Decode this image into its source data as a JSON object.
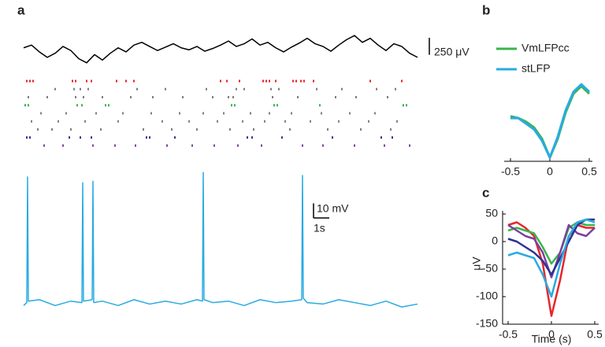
{
  "chart_data": [
    {
      "type": "line",
      "label": "a",
      "x": [
        0,
        0.5,
        1,
        1.5,
        2,
        2.5,
        3,
        3.5,
        4,
        4.5,
        5,
        5.5,
        6,
        6.5,
        7,
        7.5,
        8,
        8.5,
        9,
        9.5,
        10,
        10.5,
        11,
        11.5,
        12,
        12.5,
        13,
        13.5,
        14,
        14.5,
        15,
        15.5,
        16,
        16.5,
        17,
        17.5,
        18,
        18.5,
        19,
        19.5,
        20,
        20.5,
        21,
        21.5,
        22,
        22.5,
        23,
        23.5,
        24,
        24.5,
        25
      ],
      "series": [
        {
          "color": "#000000",
          "values": [
            20,
            60,
            -40,
            -120,
            -60,
            40,
            -20,
            -140,
            -200,
            -80,
            -160,
            -60,
            20,
            -40,
            60,
            100,
            40,
            -20,
            30,
            80,
            20,
            -10,
            40,
            -30,
            10,
            60,
            120,
            40,
            80,
            150,
            60,
            100,
            20,
            -40,
            30,
            90,
            160,
            80,
            40,
            -30,
            60,
            140,
            200,
            100,
            160,
            60,
            -20,
            80,
            40,
            -60,
            -120
          ]
        }
      ],
      "xlim": [
        0,
        25
      ],
      "ylim": [
        -260,
        260
      ],
      "scale_bar": {
        "value": 250,
        "label": "250 μV"
      }
    },
    {
      "type": "raster",
      "xlim": [
        0,
        25
      ],
      "series": [
        {
          "color": "#e8262a",
          "x": [
            0.2,
            0.4,
            0.6,
            3.1,
            3.3,
            4.0,
            4.3,
            5.9,
            6.5,
            7.0,
            12.5,
            12.9,
            13.7,
            15.2,
            15.4,
            15.6,
            16.0,
            17.1,
            17.3,
            17.6,
            17.8,
            18.4,
            22.0,
            24.0
          ]
        },
        {
          "color": "#808080",
          "x": [
            2.0,
            3.2,
            3.6,
            4.1,
            7.2,
            9.0,
            11.6,
            13.5,
            14.0,
            15.7,
            16.2,
            18.6,
            20.2,
            22.4,
            23.6
          ]
        },
        {
          "color": "#808080",
          "x": [
            0.3,
            1.5,
            3.3,
            3.8,
            5.0,
            6.8,
            8.2,
            10.1,
            12.0,
            13.0,
            13.3,
            15.8,
            17.4,
            19.8,
            21.1,
            23.1
          ]
        },
        {
          "color": "#39b54a",
          "x": [
            0.1,
            0.3,
            3.4,
            3.7,
            5.2,
            5.4,
            13.2,
            13.4,
            15.9,
            16.1,
            18.8,
            24.1,
            24.3
          ]
        },
        {
          "color": "#808080",
          "x": [
            1.1,
            2.7,
            4.6,
            6.3,
            8.1,
            9.9,
            11.4,
            12.7,
            14.4,
            15.6,
            17.0,
            18.9,
            20.7,
            22.3
          ]
        },
        {
          "color": "#808080",
          "x": [
            0.5,
            2.2,
            3.9,
            6.0,
            8.8,
            10.5,
            12.3,
            13.9,
            15.3,
            16.6,
            18.2,
            20.0,
            21.9,
            23.7
          ]
        },
        {
          "color": "#808080",
          "x": [
            0.9,
            1.8,
            3.0,
            4.9,
            7.6,
            9.4,
            11.0,
            13.1,
            14.6,
            16.9,
            19.3,
            21.4,
            23.3
          ]
        },
        {
          "color": "#2e3192",
          "x": [
            0.2,
            0.4,
            2.9,
            3.6,
            4.3,
            7.8,
            8.0,
            9.6,
            14.2,
            14.5,
            16.4,
            19.6,
            22.7,
            23.4
          ]
        },
        {
          "color": "#7b3f9e",
          "x": [
            1.3,
            2.5,
            4.4,
            5.8,
            7.1,
            9.1,
            10.7,
            12.1,
            13.6,
            15.1,
            17.7,
            19.0,
            21.0,
            22.9,
            24.5
          ]
        }
      ]
    },
    {
      "type": "line",
      "x": [
        0,
        0.2,
        0.25,
        0.3,
        1,
        2,
        3,
        3.7,
        3.75,
        3.8,
        4.35,
        4.4,
        4.45,
        5,
        6,
        7,
        8,
        9,
        10,
        11,
        11.35,
        11.4,
        11.45,
        12,
        13,
        14,
        15,
        16,
        17,
        17.65,
        17.7,
        17.75,
        18,
        19,
        20,
        21,
        22,
        23,
        24,
        25
      ],
      "series": [
        {
          "color": "#29abe2",
          "values": [
            -66,
            -64,
            22,
            -63,
            -62,
            -66,
            -63,
            -64,
            18,
            -63,
            -62,
            19,
            -64,
            -63,
            -66,
            -62,
            -65,
            -63,
            -65,
            -62,
            -63,
            25,
            -62,
            -64,
            -63,
            -66,
            -62,
            -64,
            -63,
            -62,
            23,
            -61,
            -64,
            -65,
            -62,
            -64,
            -66,
            -63,
            -67,
            -65
          ]
        }
      ],
      "xlim": [
        0,
        25
      ],
      "ylim": [
        -75,
        30
      ],
      "scale_bar_y": {
        "value": 10,
        "label": "10 mV"
      },
      "scale_bar_x": {
        "value": 1,
        "label": "1s"
      }
    },
    {
      "type": "line",
      "label": "b",
      "x": [
        -0.5,
        -0.4,
        -0.3,
        -0.2,
        -0.1,
        0,
        0.1,
        0.2,
        0.3,
        0.4,
        0.5
      ],
      "series": [
        {
          "name": "VmLFPcc",
          "color": "#39b54a",
          "values": [
            0.1,
            0.05,
            -0.05,
            -0.2,
            -0.5,
            -1,
            -0.5,
            0.2,
            0.7,
            0.9,
            0.7
          ]
        },
        {
          "name": "stLFP",
          "color": "#29abe2",
          "values": [
            0.05,
            0.05,
            -0.1,
            -0.25,
            -0.55,
            -1.0,
            -0.45,
            0.25,
            0.75,
            0.95,
            0.75
          ]
        }
      ],
      "xlim": [
        -0.5,
        0.5
      ],
      "ylim": [
        -1.1,
        1.1
      ],
      "xticks": [
        -0.5,
        0,
        0.5
      ]
    },
    {
      "type": "line",
      "label": "c",
      "x": [
        -0.5,
        -0.4,
        -0.3,
        -0.2,
        -0.1,
        0,
        0.1,
        0.2,
        0.3,
        0.4,
        0.5
      ],
      "series": [
        {
          "color": "#e8262a",
          "values": [
            30,
            35,
            25,
            10,
            -40,
            -135,
            -70,
            10,
            30,
            25,
            25
          ]
        },
        {
          "color": "#39b54a",
          "values": [
            20,
            25,
            20,
            15,
            -10,
            -40,
            -20,
            25,
            35,
            30,
            30
          ]
        },
        {
          "color": "#7b3f9e",
          "values": [
            30,
            20,
            10,
            5,
            -20,
            -65,
            -20,
            30,
            15,
            10,
            25
          ]
        },
        {
          "color": "#2e3192",
          "values": [
            5,
            0,
            -10,
            -20,
            -35,
            -60,
            -30,
            0,
            30,
            40,
            40
          ]
        },
        {
          "color": "#29abe2",
          "values": [
            -25,
            -20,
            -25,
            -30,
            -60,
            -100,
            -40,
            10,
            35,
            40,
            35
          ]
        }
      ],
      "xlim": [
        -0.5,
        0.5
      ],
      "ylim": [
        -150,
        50
      ],
      "xticks": [
        -0.5,
        0,
        0.5
      ],
      "yticks": [
        50,
        0,
        -50,
        -100,
        -150
      ],
      "xlabel": "Time (s)",
      "ylabel": "μV"
    }
  ]
}
